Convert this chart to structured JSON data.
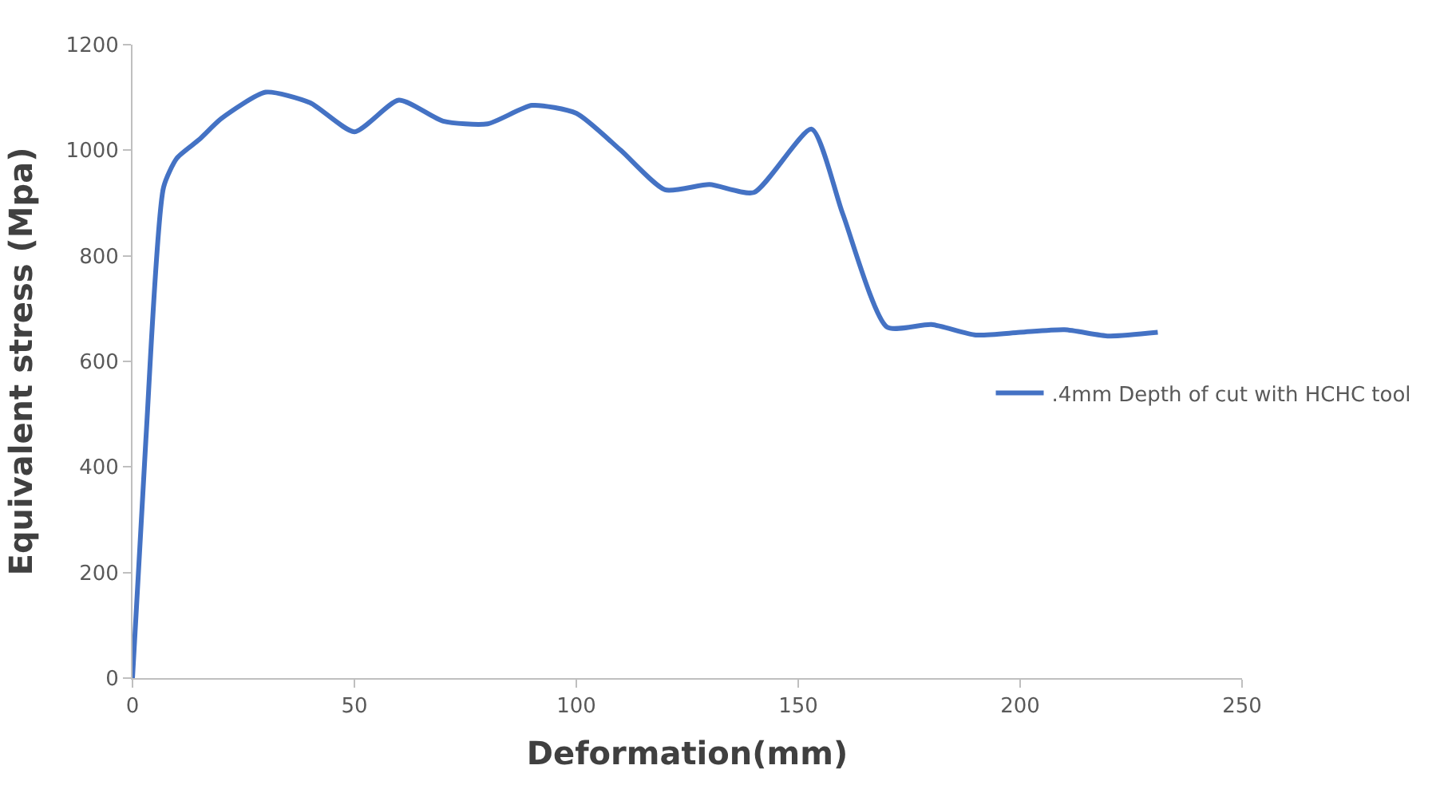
{
  "chart_data": {
    "type": "line",
    "xlabel": "Deformation(mm)",
    "ylabel": "Equivalent stress (Mpa)",
    "x": [
      0,
      3,
      7,
      10,
      15,
      20,
      30,
      40,
      50,
      60,
      70,
      80,
      90,
      100,
      110,
      120,
      130,
      140,
      153,
      160,
      170,
      180,
      190,
      200,
      210,
      220,
      231
    ],
    "series": [
      {
        "name": ".4mm Depth of cut with HCHC tool",
        "color": "#4472c4",
        "values": [
          0,
          450,
          930,
          985,
          1020,
          1060,
          1110,
          1090,
          1035,
          1095,
          1055,
          1050,
          1085,
          1070,
          1000,
          925,
          935,
          920,
          1040,
          880,
          665,
          670,
          650,
          655,
          660,
          648,
          655
        ]
      }
    ],
    "xlim": [
      0,
      250
    ],
    "xticks": [
      0,
      50,
      100,
      150,
      200,
      250
    ],
    "ylim": [
      0,
      1200
    ],
    "yticks": [
      0,
      200,
      400,
      600,
      800,
      1000,
      1200
    ],
    "legend": "right",
    "marker": "none",
    "line_style": "solid"
  }
}
